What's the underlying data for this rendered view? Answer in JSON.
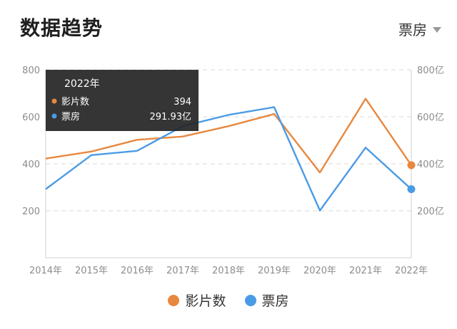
{
  "header": {
    "title": "数据趋势",
    "metric_selected": "票房"
  },
  "tooltip": {
    "year": "2022年",
    "rows": [
      {
        "label": "影片数",
        "value": "394",
        "color": "#e8883f"
      },
      {
        "label": "票房",
        "value": "291.93亿",
        "color": "#4a9be6"
      }
    ]
  },
  "chart_data": {
    "type": "line",
    "categories": [
      "2014年",
      "2015年",
      "2016年",
      "2017年",
      "2018年",
      "2019年",
      "2020年",
      "2021年",
      "2022年"
    ],
    "left_axis": {
      "ticks": [
        "200",
        "400",
        "600",
        "800"
      ],
      "ylim": [
        0,
        800
      ]
    },
    "right_axis": {
      "ticks": [
        "200亿",
        "400亿",
        "600亿",
        "800亿"
      ],
      "ylim": [
        0,
        800
      ]
    },
    "series": [
      {
        "name": "影片数",
        "color": "#e8883f",
        "axis": "left",
        "values": [
          422,
          452,
          502,
          516,
          560,
          612,
          363,
          677,
          394
        ]
      },
      {
        "name": "票房",
        "color": "#4a9be6",
        "axis": "right",
        "values": [
          292,
          437,
          455,
          560,
          608,
          641,
          201,
          469,
          291.93
        ]
      }
    ],
    "grid": true,
    "legend": "bottom",
    "highlight_index": 8
  }
}
